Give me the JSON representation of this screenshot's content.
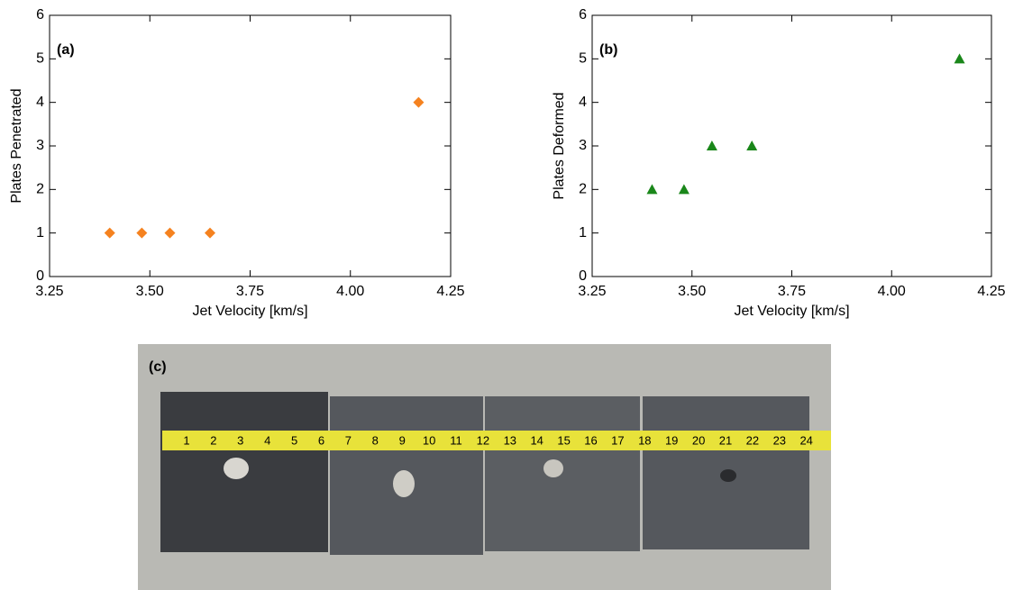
{
  "chart_data": [
    {
      "type": "scatter",
      "panel_label": "(a)",
      "xlabel": "Jet Velocity [km/s]",
      "ylabel": "Plates Penetrated",
      "x": [
        3.4,
        3.48,
        3.55,
        3.65,
        4.17
      ],
      "values": [
        1,
        1,
        1,
        1,
        4
      ],
      "color": "#f5821f",
      "marker": "diamond",
      "xlim": [
        3.25,
        4.25
      ],
      "xticks": [
        3.25,
        {
          "value": 3.5,
          "label": "3.50"
        },
        3.75,
        {
          "value": 4,
          "label": "4.00"
        },
        4.25
      ],
      "ylim": [
        0,
        6
      ],
      "yticks": [
        0,
        1,
        2,
        3,
        4,
        5,
        6
      ]
    },
    {
      "type": "scatter",
      "panel_label": "(b)",
      "xlabel": "Jet Velocity [km/s]",
      "ylabel": "Plates Deformed",
      "x": [
        3.4,
        3.48,
        3.55,
        3.65,
        4.17
      ],
      "values": [
        2,
        2,
        3,
        3,
        5
      ],
      "color": "#1a871a",
      "marker": "triangle",
      "xlim": [
        3.25,
        4.25
      ],
      "xticks": [
        3.25,
        {
          "value": 3.5,
          "label": "3.50"
        },
        3.75,
        {
          "value": 4,
          "label": "4.00"
        },
        4.25
      ],
      "ylim": [
        0,
        6
      ],
      "yticks": [
        0,
        1,
        2,
        3,
        4,
        5,
        6
      ]
    }
  ],
  "photo": {
    "label": "(c)",
    "ruler_labels": [
      1,
      2,
      3,
      4,
      5,
      6,
      7,
      8,
      9,
      10,
      11,
      12,
      13,
      14,
      15,
      16,
      17,
      18,
      19,
      20,
      21,
      22,
      23,
      24
    ]
  }
}
